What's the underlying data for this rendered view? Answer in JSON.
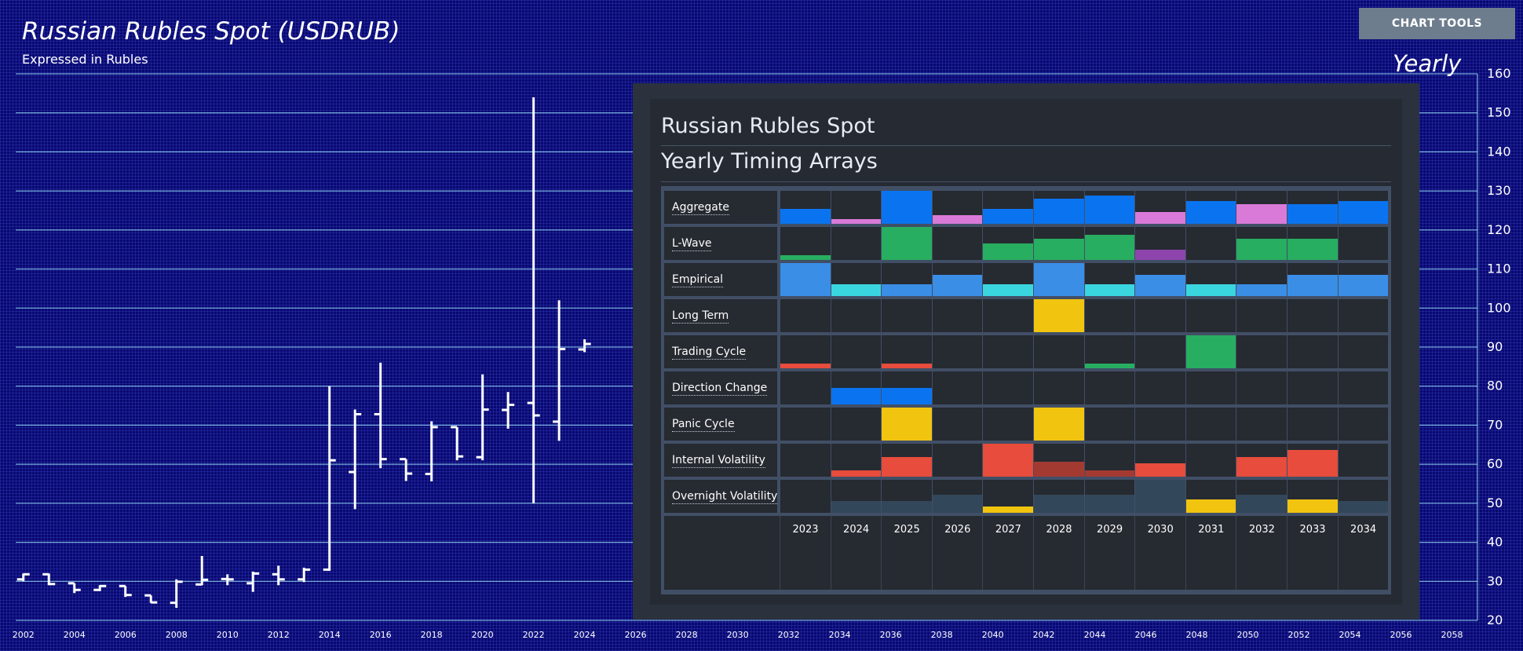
{
  "header": {
    "title": "Russian Rubles Spot (USDRUB)",
    "subtitle": "Expressed in Rubles",
    "tools_button": "CHART TOOLS",
    "period": "Yearly"
  },
  "panel": {
    "title": "Russian Rubles Spot",
    "subtitle": "Yearly Timing Arrays",
    "years": [
      "2023",
      "2024",
      "2025",
      "2026",
      "2027",
      "2028",
      "2029",
      "2030",
      "2031",
      "2032",
      "2033",
      "2034"
    ],
    "rows": [
      {
        "label": "Aggregate",
        "values": [
          0.45,
          0.15,
          1.0,
          0.25,
          0.45,
          0.75,
          0.85,
          0.35,
          0.7,
          0.6,
          0.6,
          0.7
        ],
        "colors": [
          "#0a74f0",
          "#d97ad9",
          "#0a74f0",
          "#d97ad9",
          "#0a74f0",
          "#0a74f0",
          "#0a74f0",
          "#d97ad9",
          "#0a74f0",
          "#d97ad9",
          "#0a74f0",
          "#0a74f0"
        ]
      },
      {
        "label": "L-Wave",
        "values": [
          0.15,
          0,
          1.0,
          0,
          0.5,
          0.65,
          0.75,
          0.3,
          0,
          0.65,
          0.65,
          0
        ],
        "colors": [
          "#27ae60",
          "",
          "#27ae60",
          "",
          "#27ae60",
          "#27ae60",
          "#27ae60",
          "#8e44ad",
          "",
          "#27ae60",
          "#27ae60",
          ""
        ]
      },
      {
        "label": "Empirical",
        "values": [
          1.0,
          0.35,
          0.35,
          0.65,
          0.35,
          1.0,
          0.35,
          0.65,
          0.35,
          0.35,
          0.65,
          0.65
        ],
        "colors": [
          "#3a8ee6",
          "#3ad6e0",
          "#3a8ee6",
          "#3a8ee6",
          "#3ad6e0",
          "#3a8ee6",
          "#3ad6e0",
          "#3a8ee6",
          "#3ad6e0",
          "#3a8ee6",
          "#3a8ee6",
          "#3a8ee6"
        ]
      },
      {
        "label": "Long Term",
        "values": [
          0,
          0,
          0,
          0,
          0,
          1.0,
          0,
          0,
          0,
          0,
          0,
          0
        ],
        "colors": [
          "",
          "",
          "",
          "",
          "",
          "#f1c40f",
          "",
          "",
          "",
          "",
          "",
          ""
        ]
      },
      {
        "label": "Trading Cycle",
        "values": [
          0.15,
          0,
          0.15,
          0,
          0,
          0,
          0.15,
          0,
          1.0,
          0,
          0,
          0
        ],
        "colors": [
          "#e74c3c",
          "",
          "#e74c3c",
          "",
          "",
          "",
          "#27ae60",
          "",
          "#27ae60",
          "",
          "",
          ""
        ]
      },
      {
        "label": "Direction Change",
        "values": [
          0,
          0.5,
          0.5,
          0,
          0,
          0,
          0,
          0,
          0,
          0,
          0,
          0
        ],
        "colors": [
          "",
          "#0a74f0",
          "#0a74f0",
          "",
          "",
          "",
          "",
          "",
          "",
          "",
          "",
          ""
        ]
      },
      {
        "label": "Panic Cycle",
        "values": [
          0,
          0,
          1.0,
          0,
          0,
          1.0,
          0,
          0,
          0,
          0,
          0,
          0
        ],
        "colors": [
          "",
          "",
          "#f1c40f",
          "",
          "",
          "#f1c40f",
          "",
          "",
          "",
          "",
          "",
          ""
        ]
      },
      {
        "label": "Internal Volatility",
        "values": [
          0,
          0.2,
          0.6,
          0,
          1.0,
          0.45,
          0.2,
          0.4,
          0,
          0.6,
          0.8,
          0
        ],
        "colors": [
          "",
          "#e74c3c",
          "#e74c3c",
          "",
          "#e74c3c",
          "#a33a32",
          "#a33a32",
          "#e74c3c",
          "",
          "#e74c3c",
          "#e74c3c",
          ""
        ]
      },
      {
        "label": "Overnight Volatility",
        "values": [
          0,
          0.35,
          0.35,
          0.55,
          0.2,
          0.55,
          0.55,
          1.0,
          0.4,
          0.55,
          0.4,
          0.35
        ],
        "colors": [
          "",
          "#33475a",
          "#33475a",
          "#33475a",
          "#f1c40f",
          "#33475a",
          "#33475a",
          "#33475a",
          "#f1c40f",
          "#33475a",
          "#f1c40f",
          "#33475a"
        ]
      }
    ]
  },
  "chart_data": {
    "type": "bar",
    "bar_style": "ohlc",
    "title": "Russian Rubles Spot (USDRUB)",
    "subtitle": "Expressed in Rubles",
    "ylim": [
      20,
      160
    ],
    "y_ticks": [
      20,
      30,
      40,
      50,
      60,
      70,
      80,
      90,
      100,
      110,
      120,
      130,
      140,
      150,
      160
    ],
    "xlim": [
      2001.7,
      2059
    ],
    "x_ticks": [
      2002,
      2004,
      2006,
      2008,
      2010,
      2012,
      2014,
      2016,
      2018,
      2020,
      2022,
      2024,
      2026,
      2028,
      2030,
      2032,
      2034,
      2036,
      2038,
      2040,
      2042,
      2044,
      2046,
      2048,
      2050,
      2052,
      2054,
      2056,
      2058
    ],
    "grid": "horizontal",
    "bars": [
      {
        "x": 2002,
        "open": 30.5,
        "high": 32,
        "low": 30,
        "close": 31.8
      },
      {
        "x": 2003,
        "open": 31.8,
        "high": 32,
        "low": 29,
        "close": 29.3
      },
      {
        "x": 2004,
        "open": 29.5,
        "high": 29.5,
        "low": 27,
        "close": 27.8
      },
      {
        "x": 2005,
        "open": 27.8,
        "high": 29,
        "low": 27.5,
        "close": 28.8
      },
      {
        "x": 2006,
        "open": 28.8,
        "high": 28.8,
        "low": 26,
        "close": 26.5
      },
      {
        "x": 2007,
        "open": 26.4,
        "high": 26.4,
        "low": 24.5,
        "close": 24.6
      },
      {
        "x": 2008,
        "open": 24.5,
        "high": 30.5,
        "low": 23.2,
        "close": 29.9
      },
      {
        "x": 2009,
        "open": 29.2,
        "high": 36.5,
        "low": 29,
        "close": 30.4
      },
      {
        "x": 2010,
        "open": 30.6,
        "high": 31.8,
        "low": 29,
        "close": 30.5
      },
      {
        "x": 2011,
        "open": 29.5,
        "high": 32.5,
        "low": 27.3,
        "close": 32
      },
      {
        "x": 2012,
        "open": 31.8,
        "high": 34,
        "low": 29,
        "close": 30.5
      },
      {
        "x": 2013,
        "open": 30.5,
        "high": 33.5,
        "low": 29.8,
        "close": 33
      },
      {
        "x": 2014,
        "open": 33,
        "high": 80,
        "low": 32.7,
        "close": 61
      },
      {
        "x": 2015,
        "open": 58,
        "high": 74,
        "low": 48.5,
        "close": 72.8
      },
      {
        "x": 2016,
        "open": 72.8,
        "high": 86,
        "low": 59,
        "close": 61.3
      },
      {
        "x": 2017,
        "open": 61.3,
        "high": 61.3,
        "low": 55.7,
        "close": 57.6
      },
      {
        "x": 2018,
        "open": 57.5,
        "high": 71,
        "low": 55.6,
        "close": 69.5
      },
      {
        "x": 2019,
        "open": 69.5,
        "high": 69.5,
        "low": 61,
        "close": 62
      },
      {
        "x": 2020,
        "open": 61.8,
        "high": 83,
        "low": 61,
        "close": 74
      },
      {
        "x": 2021,
        "open": 73.9,
        "high": 78.5,
        "low": 69.1,
        "close": 75.2
      },
      {
        "x": 2022,
        "open": 75.7,
        "high": 154,
        "low": 50,
        "close": 72.5
      },
      {
        "x": 2023,
        "open": 70.9,
        "high": 102,
        "low": 66,
        "close": 89.5
      },
      {
        "x": 2024,
        "open": 89.4,
        "high": 92,
        "low": 88.7,
        "close": 90.8
      }
    ]
  }
}
